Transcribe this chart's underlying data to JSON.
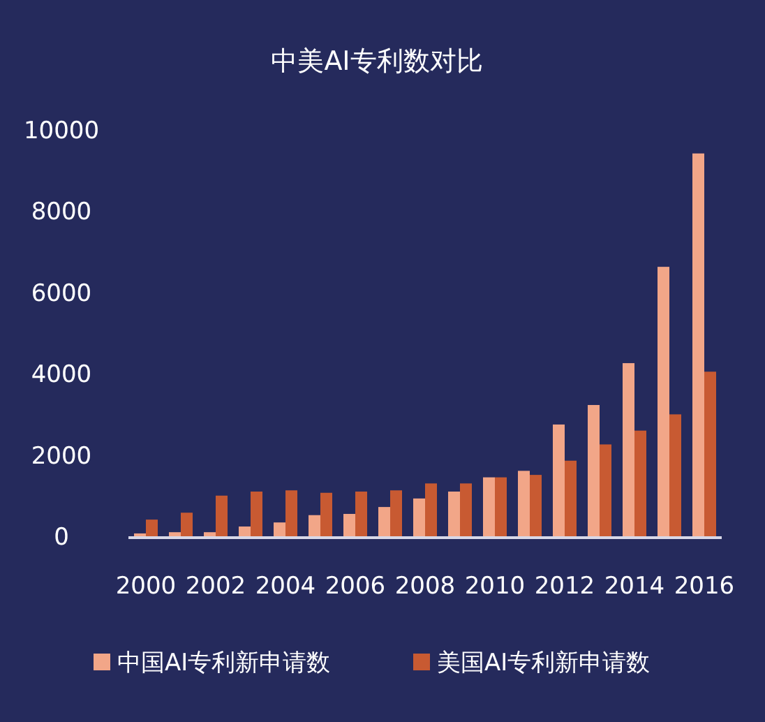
{
  "chart_data": {
    "type": "bar",
    "title": "中美AI专利数对比",
    "categories": [
      "2000",
      null,
      "2002",
      null,
      "2004",
      null,
      "2006",
      null,
      "2008",
      null,
      "2010",
      null,
      "2012",
      null,
      "2014",
      null,
      "2016"
    ],
    "series": [
      {
        "name": "中国AI专利新申请数",
        "color": "#f2a688",
        "values": [
          70,
          100,
          100,
          240,
          340,
          520,
          550,
          720,
          930,
          1100,
          1450,
          1610,
          2750,
          3230,
          4260,
          6630,
          9420
        ]
      },
      {
        "name": "美国AI专利新申请数",
        "color": "#c85a32",
        "values": [
          410,
          580,
          1000,
          1100,
          1130,
          1070,
          1100,
          1130,
          1300,
          1300,
          1450,
          1510,
          1860,
          2260,
          2600,
          3000,
          4050
        ]
      }
    ],
    "ylim": [
      0,
      10000
    ],
    "yticks": [
      0,
      2000,
      4000,
      6000,
      8000,
      10000
    ],
    "legend": "bottom",
    "grid": false
  }
}
